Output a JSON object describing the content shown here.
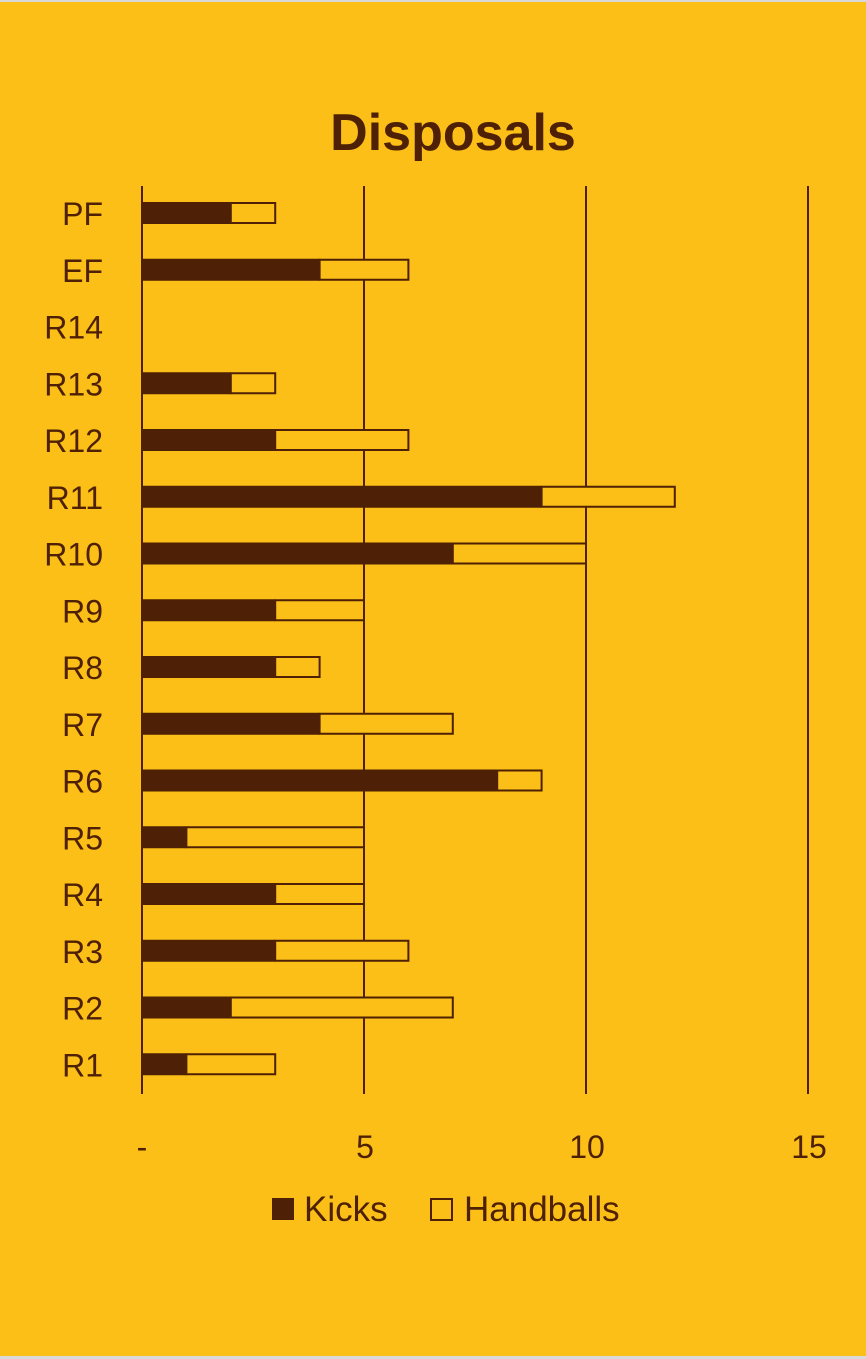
{
  "colors": {
    "background": "#FBBF17",
    "kicks": "#4E2005",
    "handballs": "#FBBF17",
    "stroke": "#4E2005",
    "text": "#4E2005"
  },
  "chart_data": {
    "type": "bar",
    "orientation": "horizontal",
    "stacked": true,
    "title": "Disposals",
    "categories": [
      "PF",
      "EF",
      "R14",
      "R13",
      "R12",
      "R11",
      "R10",
      "R9",
      "R8",
      "R7",
      "R6",
      "R5",
      "R4",
      "R3",
      "R2",
      "R1"
    ],
    "series": [
      {
        "name": "Kicks",
        "values": [
          2,
          4,
          null,
          2,
          3,
          9,
          7,
          3,
          3,
          4,
          8,
          1,
          3,
          3,
          2,
          1
        ]
      },
      {
        "name": "Handballs",
        "values": [
          1,
          2,
          null,
          1,
          3,
          3,
          3,
          2,
          1,
          3,
          1,
          4,
          2,
          3,
          5,
          2
        ]
      }
    ],
    "xlim": [
      0,
      15
    ],
    "xticks": [
      {
        "value": 0,
        "label": "-"
      },
      {
        "value": 5,
        "label": "5"
      },
      {
        "value": 10,
        "label": "10"
      },
      {
        "value": 15,
        "label": "15"
      }
    ],
    "grid": "vertical",
    "legend": "bottom"
  }
}
